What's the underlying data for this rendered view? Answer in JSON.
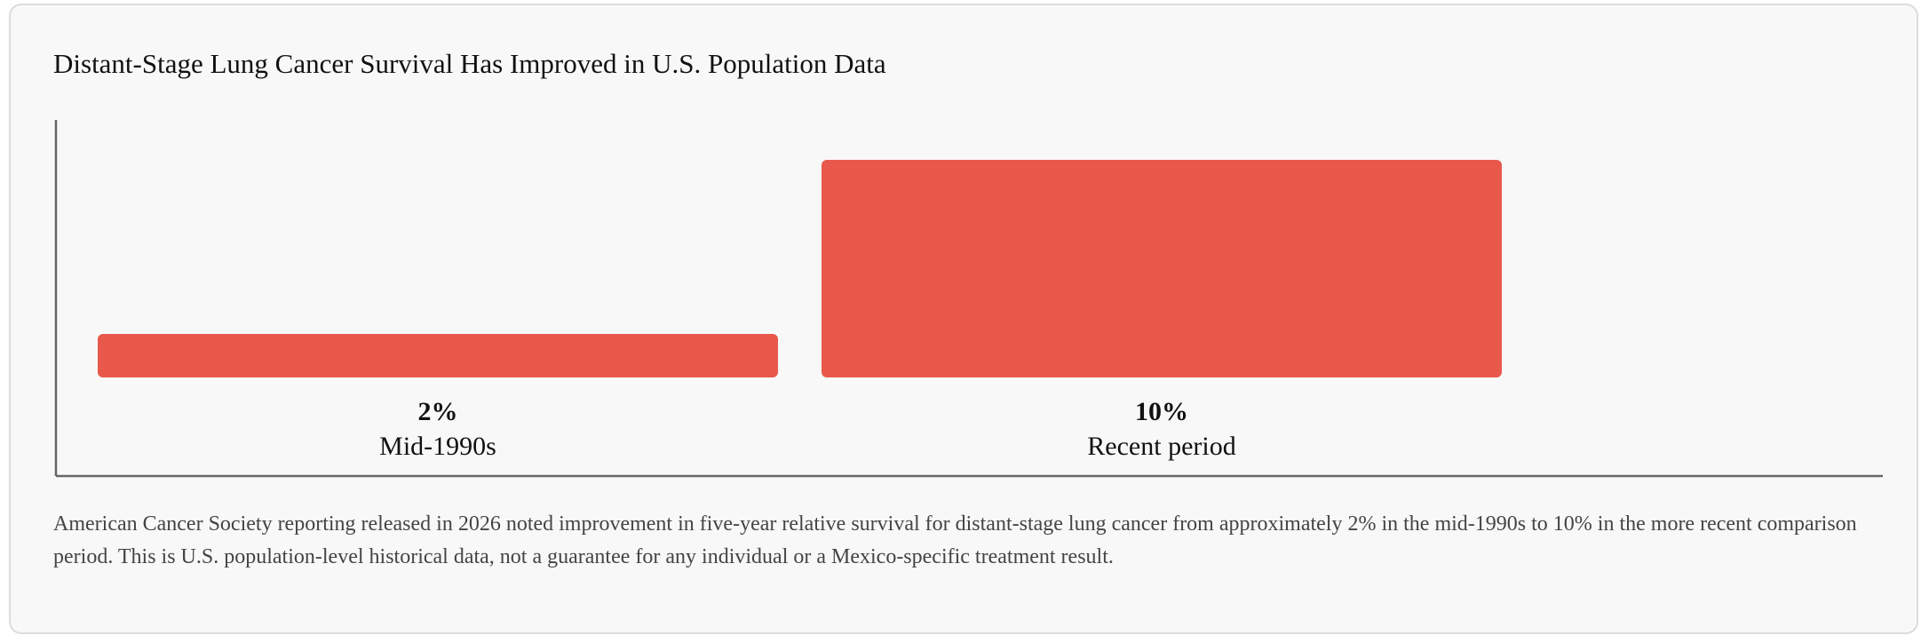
{
  "chart_data": {
    "type": "bar",
    "title": "Distant-Stage Lung Cancer Survival Has Improved in U.S. Population Data",
    "categories": [
      "Mid-1990s",
      "Recent period"
    ],
    "values": [
      2,
      10
    ],
    "value_labels": [
      "2%",
      "10%"
    ],
    "unit": "%",
    "xlabel": "",
    "ylabel": "",
    "ylim": [
      0,
      10
    ],
    "grid": false,
    "legend": "none",
    "bar_color": "#e8594c",
    "axis_color": "#666666"
  },
  "note": "American Cancer Society reporting released in 2026 noted improvement in five-year relative survival for distant-stage lung cancer from approximately 2% in the mid-1990s to 10% in the more recent comparison period. This is U.S. population-level historical data, not a guarantee for any individual or a Mexico-specific treatment result."
}
